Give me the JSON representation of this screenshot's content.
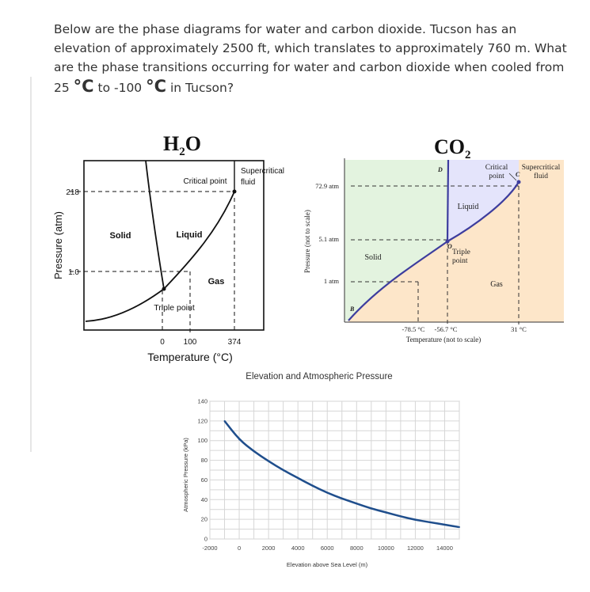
{
  "question": {
    "part1": "Below are the phase diagrams for water and carbon dioxide. Tucson has an elevation of approximately 2500 ft, which translates to approximately 760 m. What are the phase transitions occurring for water and carbon dioxide when cooled from 25 ",
    "deg1": "°C",
    "part2": " to -100 ",
    "deg2": "°C",
    "part3": " in Tucson?"
  },
  "water": {
    "title_main": "H",
    "title_sub": "2",
    "title_end": "O",
    "ylabel": "Pressure (atm)",
    "xlabel": "Temperature (°C)",
    "yticks": [
      "218",
      "1.0"
    ],
    "xticks": [
      "0",
      "100",
      "374"
    ],
    "labels": {
      "solid": "Solid",
      "liquid": "Liquid",
      "gas": "Gas",
      "critical_point": "Critical point",
      "supercritical_1": "Supercritical",
      "supercritical_2": "fluid",
      "triple_point": "Triple point"
    }
  },
  "co2": {
    "title_main": "CO",
    "title_sub": "2",
    "ylabel": "Pressure (not to scale)",
    "xlabel": "Temperature (not to scale)",
    "yticks": [
      "72.9 atm",
      "5.1 atm",
      "1 atm"
    ],
    "xticks": [
      "-78.5 °C",
      "-56.7 °C",
      "31 °C"
    ],
    "labels": {
      "solid": "Solid",
      "liquid": "Liquid",
      "gas": "Gas",
      "triple_1": "Triple",
      "triple_2": "point",
      "critical_1": "Critical",
      "critical_2": "point",
      "super_1": "Supercritical",
      "super_2": "fluid",
      "point_b": "B",
      "point_c": "C",
      "point_d": "D",
      "point_o": "O"
    },
    "colors": {
      "solid": "#e3f3df",
      "liquid": "#e4e4fb",
      "gas": "#fde6c9",
      "boundary": "#3d3d9e"
    }
  },
  "chart_data": {
    "type": "line",
    "title": "Elevation and Atmospheric Pressure",
    "xlabel": "Elevation above Sea Level (m)",
    "ylabel": "Atmospheric Pressure (kPa)",
    "xlim": [
      -2000,
      15000
    ],
    "ylim": [
      0,
      140
    ],
    "xticks": [
      "-2000",
      "0",
      "2000",
      "4000",
      "6000",
      "8000",
      "10000",
      "12000",
      "14000"
    ],
    "yticks": [
      "0",
      "20",
      "40",
      "60",
      "80",
      "100",
      "120",
      "140"
    ],
    "grid": true,
    "series": [
      {
        "color": "#1f4e8c",
        "x": [
          -1000,
          0,
          1000,
          2000,
          3000,
          4000,
          5000,
          6000,
          7000,
          8000,
          9000,
          10000,
          11000,
          12000,
          13000,
          14000,
          15000
        ],
        "y": [
          120,
          101,
          89,
          79,
          70,
          62,
          54,
          47,
          41,
          36,
          31,
          27,
          23,
          19.5,
          17,
          14.5,
          12
        ]
      }
    ]
  }
}
